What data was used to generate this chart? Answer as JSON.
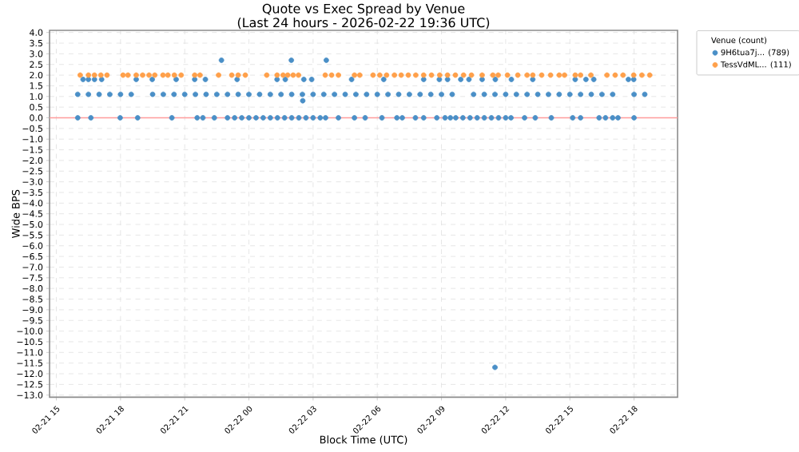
{
  "chart_data": {
    "type": "scatter",
    "title": "Quote vs Exec Spread by Venue",
    "subtitle": "(Last 24 hours - 2026-02-22 19:36 UTC)",
    "xlabel": "Block Time (UTC)",
    "ylabel": "Wide BPS",
    "legend_title": "Venue (count)",
    "legend": "right",
    "grid": true,
    "marker": "circle",
    "xlim": [
      "2026-02-21T14:41",
      "2026-02-22T20:02"
    ],
    "xticks": [
      {
        "value": "2026-02-21T15:00",
        "label": "02-21 15"
      },
      {
        "value": "2026-02-21T18:00",
        "label": "02-21 18"
      },
      {
        "value": "2026-02-21T21:00",
        "label": "02-21 21"
      },
      {
        "value": "2026-02-22T00:00",
        "label": "02-22 00"
      },
      {
        "value": "2026-02-22T03:00",
        "label": "02-22 03"
      },
      {
        "value": "2026-02-22T06:00",
        "label": "02-22 06"
      },
      {
        "value": "2026-02-22T09:00",
        "label": "02-22 09"
      },
      {
        "value": "2026-02-22T12:00",
        "label": "02-22 12"
      },
      {
        "value": "2026-02-22T15:00",
        "label": "02-22 15"
      },
      {
        "value": "2026-02-22T18:00",
        "label": "02-22 18"
      }
    ],
    "ylim": [
      -13.1,
      4.1
    ],
    "yticks": [
      {
        "value": 4,
        "label": "4.0"
      },
      {
        "value": 3.5,
        "label": "3.5"
      },
      {
        "value": 3,
        "label": "3.0"
      },
      {
        "value": 2.5,
        "label": "2.5"
      },
      {
        "value": 2,
        "label": "2.0"
      },
      {
        "value": 1.5,
        "label": "1.5"
      },
      {
        "value": 1,
        "label": "1.0"
      },
      {
        "value": 0.5,
        "label": "0.5"
      },
      {
        "value": 0,
        "label": "0.0"
      },
      {
        "value": -0.5,
        "label": "−0.5"
      },
      {
        "value": -1,
        "label": "−1.0"
      },
      {
        "value": -1.5,
        "label": "−1.5"
      },
      {
        "value": -2,
        "label": "−2.0"
      },
      {
        "value": -2.5,
        "label": "−2.5"
      },
      {
        "value": -3,
        "label": "−3.0"
      },
      {
        "value": -3.5,
        "label": "−3.5"
      },
      {
        "value": -4,
        "label": "−4.0"
      },
      {
        "value": -4.5,
        "label": "−4.5"
      },
      {
        "value": -5,
        "label": "−5.0"
      },
      {
        "value": -5.5,
        "label": "−5.5"
      },
      {
        "value": -6,
        "label": "−6.0"
      },
      {
        "value": -6.5,
        "label": "−6.5"
      },
      {
        "value": -7,
        "label": "−7.0"
      },
      {
        "value": -7.5,
        "label": "−7.5"
      },
      {
        "value": -8,
        "label": "−8.0"
      },
      {
        "value": -8.5,
        "label": "−8.5"
      },
      {
        "value": -9,
        "label": "−9.0"
      },
      {
        "value": -9.5,
        "label": "−9.5"
      },
      {
        "value": -10,
        "label": "−10.0"
      },
      {
        "value": -10.5,
        "label": "−10.5"
      },
      {
        "value": -11,
        "label": "−11.0"
      },
      {
        "value": -11.5,
        "label": "−11.5"
      },
      {
        "value": -12,
        "label": "−12.0"
      },
      {
        "value": -12.5,
        "label": "−12.5"
      },
      {
        "value": -13,
        "label": "−13.0"
      }
    ],
    "ref_lines": [
      {
        "axis": "y",
        "value": 0,
        "color": "#ff9c9c"
      }
    ],
    "series": [
      {
        "name": "9H6tua7j... (789)",
        "color": "#4a8fc7",
        "x": [
          "2026-02-21T16:00",
          "2026-02-21T16:30",
          "2026-02-21T17:00",
          "2026-02-21T17:30",
          "2026-02-21T18:00",
          "2026-02-21T18:30",
          "2026-02-21T19:30",
          "2026-02-21T20:00",
          "2026-02-21T20:30",
          "2026-02-21T21:00",
          "2026-02-21T21:30",
          "2026-02-21T22:00",
          "2026-02-21T22:30",
          "2026-02-21T23:00",
          "2026-02-21T23:30",
          "2026-02-22T00:00",
          "2026-02-22T00:30",
          "2026-02-22T01:00",
          "2026-02-22T01:30",
          "2026-02-22T02:00",
          "2026-02-22T02:30",
          "2026-02-22T03:00",
          "2026-02-22T03:30",
          "2026-02-22T04:00",
          "2026-02-22T04:30",
          "2026-02-22T05:00",
          "2026-02-22T05:30",
          "2026-02-22T06:00",
          "2026-02-22T06:30",
          "2026-02-22T07:00",
          "2026-02-22T07:30",
          "2026-02-22T08:00",
          "2026-02-22T08:30",
          "2026-02-22T09:00",
          "2026-02-22T09:30",
          "2026-02-22T10:30",
          "2026-02-22T11:00",
          "2026-02-22T11:30",
          "2026-02-22T12:00",
          "2026-02-22T12:30",
          "2026-02-22T13:00",
          "2026-02-22T13:30",
          "2026-02-22T14:00",
          "2026-02-22T14:30",
          "2026-02-22T15:00",
          "2026-02-22T15:30",
          "2026-02-22T16:00",
          "2026-02-22T16:30",
          "2026-02-22T17:00",
          "2026-02-22T18:00",
          "2026-02-22T18:30",
          "2026-02-21T16:00",
          "2026-02-21T16:37",
          "2026-02-21T17:59",
          "2026-02-21T18:48",
          "2026-02-21T20:24",
          "2026-02-21T21:35",
          "2026-02-21T21:51",
          "2026-02-21T22:23",
          "2026-02-21T23:00",
          "2026-02-21T23:20",
          "2026-02-21T23:40",
          "2026-02-22T00:00",
          "2026-02-22T00:20",
          "2026-02-22T00:40",
          "2026-02-22T01:00",
          "2026-02-22T01:20",
          "2026-02-22T01:40",
          "2026-02-22T02:00",
          "2026-02-22T02:20",
          "2026-02-22T02:40",
          "2026-02-22T03:00",
          "2026-02-22T03:20",
          "2026-02-22T03:35",
          "2026-02-22T04:11",
          "2026-02-22T04:56",
          "2026-02-22T05:26",
          "2026-02-22T06:13",
          "2026-02-22T06:55",
          "2026-02-22T07:10",
          "2026-02-22T07:47",
          "2026-02-22T08:10",
          "2026-02-22T08:47",
          "2026-02-22T09:10",
          "2026-02-22T09:25",
          "2026-02-22T09:40",
          "2026-02-22T10:00",
          "2026-02-22T10:20",
          "2026-02-22T10:40",
          "2026-02-22T11:00",
          "2026-02-22T11:20",
          "2026-02-22T11:40",
          "2026-02-22T12:00",
          "2026-02-22T12:15",
          "2026-02-22T12:53",
          "2026-02-22T13:23",
          "2026-02-22T14:08",
          "2026-02-22T15:08",
          "2026-02-22T15:30",
          "2026-02-22T16:22",
          "2026-02-22T16:40",
          "2026-02-22T17:00",
          "2026-02-22T17:15",
          "2026-02-22T18:00",
          "2026-02-21T16:15",
          "2026-02-21T16:30",
          "2026-02-21T16:47",
          "2026-02-21T17:07",
          "2026-02-21T18:44",
          "2026-02-21T19:29",
          "2026-02-21T20:36",
          "2026-02-21T21:28",
          "2026-02-21T21:58",
          "2026-02-21T23:27",
          "2026-02-22T01:19",
          "2026-02-22T01:42",
          "2026-02-22T02:34",
          "2026-02-22T02:56",
          "2026-02-22T04:48",
          "2026-02-22T06:18",
          "2026-02-22T08:10",
          "2026-02-22T08:54",
          "2026-02-22T09:17",
          "2026-02-22T09:54",
          "2026-02-22T10:17",
          "2026-02-22T10:54",
          "2026-02-22T11:31",
          "2026-02-22T12:16",
          "2026-02-22T13:16",
          "2026-02-22T15:15",
          "2026-02-22T15:45",
          "2026-02-22T16:07",
          "2026-02-22T17:44",
          "2026-02-22T17:59",
          "2026-02-21T22:43",
          "2026-02-22T01:59",
          "2026-02-22T03:37",
          "2026-02-22T02:31",
          "2026-02-22T11:30"
        ],
        "values": [
          1.1,
          1.1,
          1.1,
          1.1,
          1.1,
          1.1,
          1.1,
          1.1,
          1.1,
          1.1,
          1.1,
          1.1,
          1.1,
          1.1,
          1.1,
          1.1,
          1.1,
          1.1,
          1.1,
          1.1,
          1.1,
          1.1,
          1.1,
          1.1,
          1.1,
          1.1,
          1.1,
          1.1,
          1.1,
          1.1,
          1.1,
          1.1,
          1.1,
          1.1,
          1.1,
          1.1,
          1.1,
          1.1,
          1.1,
          1.1,
          1.1,
          1.1,
          1.1,
          1.1,
          1.1,
          1.1,
          1.1,
          1.1,
          1.1,
          1.1,
          1.1,
          0,
          0,
          0,
          0,
          0,
          0,
          0,
          0,
          0,
          0,
          0,
          0,
          0,
          0,
          0,
          0,
          0,
          0,
          0,
          0,
          0,
          0,
          0,
          0,
          0,
          0,
          0,
          0,
          0,
          0,
          0,
          0,
          0,
          0,
          0,
          0,
          0,
          0,
          0,
          0,
          0,
          0,
          0,
          0,
          0,
          0,
          0,
          0,
          0,
          0,
          0,
          0,
          0,
          1.8,
          1.8,
          1.8,
          1.8,
          1.8,
          1.8,
          1.8,
          1.8,
          1.8,
          1.8,
          1.8,
          1.8,
          1.8,
          1.8,
          1.8,
          1.8,
          1.8,
          1.8,
          1.8,
          1.8,
          1.8,
          1.8,
          1.8,
          1.8,
          1.8,
          1.8,
          1.8,
          1.8,
          1.8,
          1.8,
          2.7,
          2.7,
          2.7,
          0.8,
          -11.7
        ]
      },
      {
        "name": "TessVdML... (111)",
        "color": "#ffa04a",
        "x": [
          "2026-02-21T16:07",
          "2026-02-21T16:30",
          "2026-02-21T16:47",
          "2026-02-21T17:05",
          "2026-02-21T17:22",
          "2026-02-21T18:07",
          "2026-02-21T18:21",
          "2026-02-21T18:44",
          "2026-02-21T19:02",
          "2026-02-21T19:20",
          "2026-02-21T19:36",
          "2026-02-21T19:59",
          "2026-02-21T20:13",
          "2026-02-21T20:31",
          "2026-02-21T20:50",
          "2026-02-21T21:28",
          "2026-02-21T21:43",
          "2026-02-21T22:35",
          "2026-02-21T23:12",
          "2026-02-21T23:30",
          "2026-02-21T23:50",
          "2026-02-22T00:50",
          "2026-02-22T01:19",
          "2026-02-22T01:36",
          "2026-02-22T01:49",
          "2026-02-22T02:04",
          "2026-02-22T02:19",
          "2026-02-22T03:34",
          "2026-02-22T03:52",
          "2026-02-22T04:11",
          "2026-02-22T04:56",
          "2026-02-22T05:11",
          "2026-02-22T05:48",
          "2026-02-22T06:07",
          "2026-02-22T06:26",
          "2026-02-22T06:48",
          "2026-02-22T07:07",
          "2026-02-22T07:27",
          "2026-02-22T07:48",
          "2026-02-22T08:10",
          "2026-02-22T08:32",
          "2026-02-22T08:55",
          "2026-02-22T09:17",
          "2026-02-22T09:39",
          "2026-02-22T10:02",
          "2026-02-22T10:24",
          "2026-02-22T10:54",
          "2026-02-22T11:24",
          "2026-02-22T11:39",
          "2026-02-22T12:05",
          "2026-02-22T12:34",
          "2026-02-22T13:00",
          "2026-02-22T13:16",
          "2026-02-22T13:41",
          "2026-02-22T14:06",
          "2026-02-22T14:30",
          "2026-02-22T14:45",
          "2026-02-22T15:15",
          "2026-02-22T15:30",
          "2026-02-22T15:59",
          "2026-02-22T16:44",
          "2026-02-22T17:07",
          "2026-02-22T17:29",
          "2026-02-22T17:59",
          "2026-02-22T18:22",
          "2026-02-22T18:44"
        ],
        "values": [
          2,
          2,
          2,
          2,
          2,
          2,
          2,
          2,
          2,
          2,
          2,
          2,
          2,
          2,
          2,
          2,
          2,
          2,
          2,
          2,
          2,
          2,
          2,
          2,
          2,
          2,
          2,
          2,
          2,
          2,
          2,
          2,
          2,
          2,
          2,
          2,
          2,
          2,
          2,
          2,
          2,
          2,
          2,
          2,
          2,
          2,
          2,
          2,
          2,
          2,
          2,
          2,
          2,
          2,
          2,
          2,
          2,
          2,
          2,
          2,
          2,
          2,
          2,
          2,
          2,
          2
        ]
      }
    ]
  }
}
